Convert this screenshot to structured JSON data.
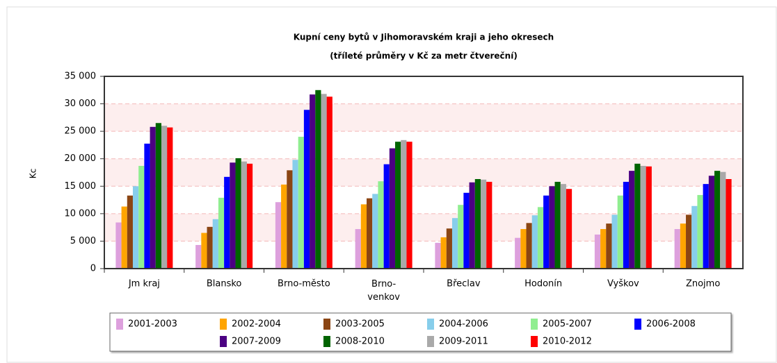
{
  "chart_data": {
    "type": "bar",
    "title": "Kupní ceny bytů v Jihomoravském kraji a jeho okresech",
    "subtitle": "(tříleté průměry v Kč za metr čtvereční)",
    "y_label": "Kc",
    "categories": [
      "Jm kraj",
      "Blansko",
      "Brno-město",
      "Brno-venkov",
      "Břeclav",
      "Hodonín",
      "Vyškov",
      "Znojmo"
    ],
    "series": [
      {
        "name": "2001-2003",
        "color": "#dda0dd",
        "values": [
          8400,
          4300,
          12100,
          7200,
          4700,
          5600,
          6200,
          7200
        ]
      },
      {
        "name": "2002-2004",
        "color": "#ffa500",
        "values": [
          11300,
          6500,
          15300,
          11700,
          5700,
          7200,
          7200,
          8200
        ]
      },
      {
        "name": "2003-2005",
        "color": "#8b4513",
        "values": [
          13300,
          7600,
          17900,
          12800,
          7300,
          8300,
          8200,
          9800
        ]
      },
      {
        "name": "2004-2006",
        "color": "#87ceeb",
        "values": [
          15000,
          9000,
          19800,
          13600,
          9200,
          9700,
          9800,
          11400
        ]
      },
      {
        "name": "2005-2007",
        "color": "#90ee90",
        "values": [
          18700,
          12900,
          24000,
          15900,
          11600,
          11200,
          13300,
          13400
        ]
      },
      {
        "name": "2006-2008",
        "color": "#0000ff",
        "values": [
          22750,
          16700,
          28900,
          19000,
          13800,
          13300,
          15800,
          15400
        ]
      },
      {
        "name": "2007-2009",
        "color": "#4b0082",
        "values": [
          25800,
          19300,
          31700,
          21900,
          15700,
          15000,
          17800,
          16900
        ]
      },
      {
        "name": "2008-2010",
        "color": "#006400",
        "values": [
          26500,
          20100,
          32500,
          23100,
          16300,
          15800,
          19100,
          17800
        ]
      },
      {
        "name": "2009-2011",
        "color": "#a9a9a9",
        "values": [
          26000,
          19500,
          31800,
          23400,
          16200,
          15400,
          18700,
          17600
        ]
      },
      {
        "name": "2010-2012",
        "color": "#ff0000",
        "values": [
          25700,
          19100,
          31300,
          23100,
          15800,
          14500,
          18600,
          16300
        ]
      }
    ],
    "ylim": [
      0,
      35000
    ],
    "yticks": [
      0,
      {
        "value": 5000,
        "label": "5 000"
      },
      {
        "value": 10000,
        "label": "10 000"
      },
      {
        "value": 15000,
        "label": "15 000"
      },
      {
        "value": 20000,
        "label": "20 000"
      },
      {
        "value": 25000,
        "label": "25 000"
      },
      {
        "value": 30000,
        "label": "30 000"
      },
      {
        "value": 35000,
        "label": "35 000"
      }
    ],
    "grid": true,
    "legend": "bottom"
  }
}
